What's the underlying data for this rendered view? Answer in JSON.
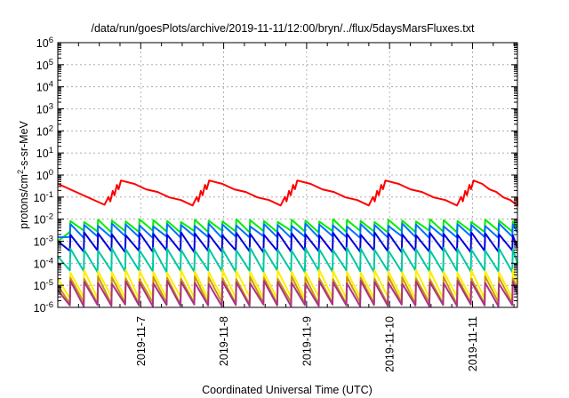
{
  "chart_data": {
    "type": "line",
    "title": "/data/run/goesPlots/archive/2019-11-11/12:00/bryn/../flux/5daysMarsFluxes.txt",
    "xlabel": "Coordinated Universal Time (UTC)",
    "ylabel": "protons/cm²-s-sr-MeV",
    "yscale": "log",
    "ylim": [
      1e-06,
      1000000.0
    ],
    "xlim": [
      "2019-11-06 00:00",
      "2019-11-11 13:00"
    ],
    "x_ticks": [
      "2019-11-7",
      "2019-11-8",
      "2019-11-9",
      "2019-11-10",
      "2019-11-11"
    ],
    "y_ticks": [
      {
        "base": "10",
        "exp": "-6"
      },
      {
        "base": "10",
        "exp": "-5"
      },
      {
        "base": "10",
        "exp": "-4"
      },
      {
        "base": "10",
        "exp": "-3"
      },
      {
        "base": "10",
        "exp": "-2"
      },
      {
        "base": "10",
        "exp": "-1"
      },
      {
        "base": "10",
        "exp": "0"
      },
      {
        "base": "10",
        "exp": "1"
      },
      {
        "base": "10",
        "exp": "2"
      },
      {
        "base": "10",
        "exp": "3"
      },
      {
        "base": "10",
        "exp": "4"
      },
      {
        "base": "10",
        "exp": "5"
      },
      {
        "base": "10",
        "exp": "6"
      }
    ],
    "grid": true,
    "legend": "none",
    "series": [
      {
        "color": "#ff0000",
        "pattern": "sawtooth",
        "period_hours": 25.5,
        "phase_hours": 13.5,
        "log_top": -0.25,
        "log_bottom": -1.35,
        "start_value": 0.4,
        "end_value": 0.1
      },
      {
        "color": "#00ee00",
        "pattern": "spikes",
        "period_hours": 4.0,
        "phase_hours": 3.5,
        "log_top": -2.0,
        "log_bottom": -2.6,
        "start_value": 0.001,
        "end_value": 0.004
      },
      {
        "color": "#0070ff",
        "pattern": "spikes",
        "period_hours": 4.0,
        "phase_hours": 3.5,
        "log_top": -2.2,
        "log_bottom": -2.85,
        "start_value": 0.0015,
        "end_value": 0.0025
      },
      {
        "color": "#0000dd",
        "pattern": "spikes",
        "period_hours": 4.0,
        "phase_hours": 3.5,
        "log_top": -2.6,
        "log_bottom": -3.5,
        "start_value": 0.001,
        "end_value": 0.0005
      },
      {
        "color": "#00c8a0",
        "pattern": "spikes",
        "period_hours": 4.0,
        "phase_hours": 3.5,
        "log_top": -3.3,
        "log_bottom": -4.4,
        "start_value": 0.0002,
        "end_value": 0.0001
      },
      {
        "color": "#ffee00",
        "pattern": "spikes",
        "period_hours": 4.0,
        "phase_hours": 3.5,
        "log_top": -4.3,
        "log_bottom": -5.6,
        "start_value": 2e-05,
        "end_value": 1.2e-05
      },
      {
        "color": "#cc9900",
        "pattern": "spikes",
        "period_hours": 4.0,
        "phase_hours": 3.5,
        "log_top": -4.6,
        "log_bottom": -5.85,
        "start_value": 1e-05,
        "end_value": 8e-06
      },
      {
        "color": "#aa3388",
        "pattern": "spikes",
        "period_hours": 4.0,
        "phase_hours": 3.5,
        "log_top": -4.8,
        "log_bottom": -5.95,
        "start_value": 6e-06,
        "end_value": 4e-06
      }
    ]
  }
}
